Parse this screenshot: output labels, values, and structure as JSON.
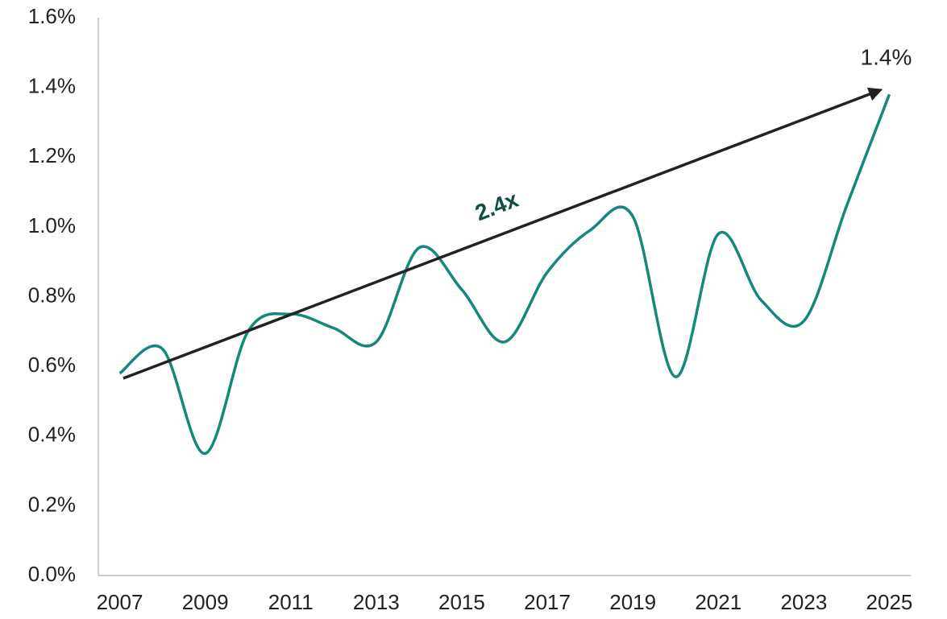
{
  "chart_data": {
    "type": "line",
    "x": [
      2007,
      2008,
      2009,
      2010,
      2011,
      2012,
      2013,
      2014,
      2015,
      2016,
      2017,
      2018,
      2019,
      2020,
      2021,
      2022,
      2023,
      2024,
      2025
    ],
    "series": [
      {
        "color": "#14887a",
        "values": [
          0.58,
          0.65,
          0.35,
          0.7,
          0.75,
          0.71,
          0.67,
          0.94,
          0.82,
          0.67,
          0.87,
          0.99,
          1.03,
          0.57,
          0.98,
          0.79,
          0.73,
          1.06,
          1.38
        ],
        "value_labels": [
          null,
          null,
          null,
          null,
          null,
          null,
          null,
          null,
          null,
          null,
          null,
          null,
          null,
          null,
          null,
          null,
          null,
          null,
          "1.4%"
        ]
      }
    ],
    "xlim": [
      2006.5,
      2025.5
    ],
    "xticks": [
      2007,
      2009,
      2011,
      2013,
      2015,
      2017,
      2019,
      2021,
      2023,
      2025
    ],
    "ylim": [
      0,
      1.6
    ],
    "yticks": [
      {
        "value": 0,
        "label": "0.0%"
      },
      {
        "value": 0.2,
        "label": "0.2%"
      },
      {
        "value": 0.4,
        "label": "0.4%"
      },
      {
        "value": 0.6,
        "label": "0.6%"
      },
      {
        "value": 0.8,
        "label": "0.8%"
      },
      {
        "value": 1.0,
        "label": "1.0%"
      },
      {
        "value": 1.2,
        "label": "1.2%"
      },
      {
        "value": 1.4,
        "label": "1.4%"
      },
      {
        "value": 1.6,
        "label": "1.6%"
      }
    ],
    "annotation": "2.4x"
  }
}
